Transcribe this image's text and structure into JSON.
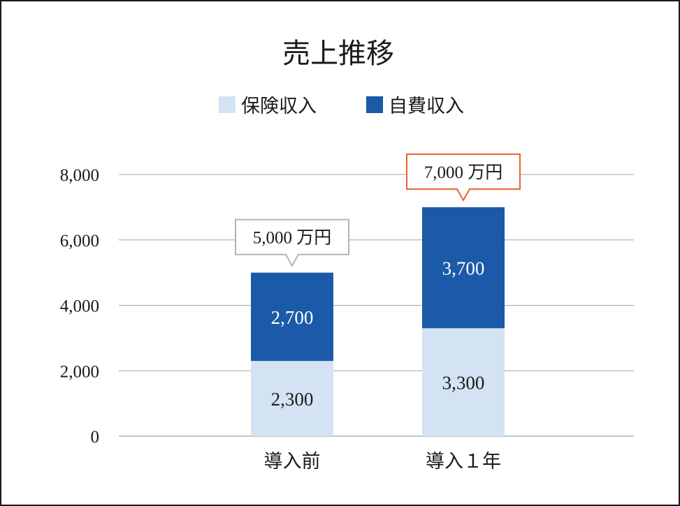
{
  "chart_data": {
    "type": "bar",
    "stacked": true,
    "title": "売上推移",
    "categories": [
      "導入前",
      "導入１年"
    ],
    "series": [
      {
        "name": "保険収入",
        "values": [
          2300,
          3300
        ],
        "color": "#d3e3f3",
        "label_color": "#1a1a1a"
      },
      {
        "name": "自費収入",
        "values": [
          2700,
          3700
        ],
        "color": "#1b5aa8",
        "label_color": "#ffffff"
      }
    ],
    "data_labels": [
      [
        "2,300",
        "3,300"
      ],
      [
        "2,700",
        "3,700"
      ]
    ],
    "totals": [
      {
        "label": "5,000 万円",
        "border_color": "#b3b3b3"
      },
      {
        "label": "7,000 万円",
        "border_color": "#e8622e"
      }
    ],
    "y_ticks": [
      {
        "value": 0,
        "label": "0"
      },
      {
        "value": 2000,
        "label": "2,000"
      },
      {
        "value": 4000,
        "label": "4,000"
      },
      {
        "value": 6000,
        "label": "6,000"
      },
      {
        "value": 8000,
        "label": "8,000"
      }
    ],
    "ylim": [
      0,
      8000
    ],
    "grid": true,
    "legend_position": "top-center",
    "xlabel": "",
    "ylabel": ""
  }
}
